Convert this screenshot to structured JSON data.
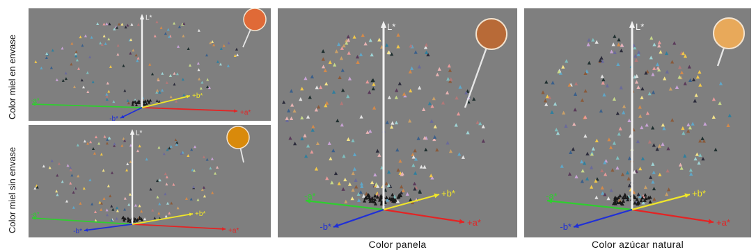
{
  "axis_labels": {
    "l": "L*",
    "plus_a": "+a*",
    "minus_a": "-a*",
    "plus_b": "+b*",
    "minus_b": "-b*"
  },
  "panels": [
    {
      "id": "envase",
      "side_label": "Color miel en envase",
      "caption": "",
      "swatch_color": "#e06a37"
    },
    {
      "id": "sin-envase",
      "side_label": "Color miel sin envase",
      "caption": "",
      "swatch_color": "#d98a0b"
    },
    {
      "id": "panela",
      "side_label": "",
      "caption": "Color panela",
      "swatch_color": "#b86a37"
    },
    {
      "id": "azucar",
      "side_label": "",
      "caption": "Color azúcar natural",
      "swatch_color": "#e8a95a"
    }
  ],
  "colors": {
    "background": "#7f7f7f",
    "axis_a": "#e52323",
    "axis_minus_a": "#2ecf2e",
    "axis_b": "#f0e62a",
    "axis_minus_b": "#1f2fd8",
    "axis_l": "#f2f2f2"
  }
}
